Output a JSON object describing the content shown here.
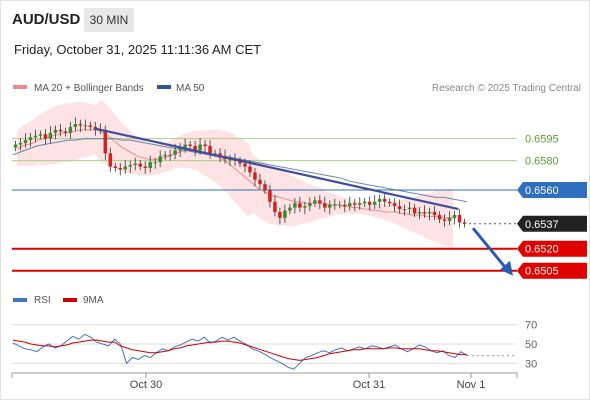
{
  "header": {
    "pair": "AUD/USD",
    "timeframe": "30 MIN",
    "datetime": "Friday, October 31, 2025 11:11:36 AM CET"
  },
  "legend": {
    "ma20": "MA 20 + Bollinger Bands",
    "ma50": "MA 50",
    "credit": "Research © 2025 Trading Central",
    "rsi": "RSI",
    "rsi_ma": "9MA"
  },
  "colors": {
    "ma20": "#f08a8a",
    "band_fill": "#fde0e0",
    "ma50": "#2f5597",
    "trendline": "#3f4d9a",
    "resistance_green": "#a9d08e",
    "pivot_blue": "#2e6fbf",
    "support_red": "#e00000",
    "candle_green": "#3a8a2e",
    "candle_red": "#d42020",
    "rsi_line": "#4472c4",
    "rsi_ma_line": "#cc0000"
  },
  "chart_data": {
    "type": "candlestick",
    "y_unit": "AUD/USD",
    "ylim": [
      0.6498,
      0.66125
    ],
    "x_ticks": [
      "Oct 30",
      "Oct 31",
      "Nov 1"
    ],
    "levels": [
      {
        "value": 0.6595,
        "label": "0.6595",
        "kind": "resistance"
      },
      {
        "value": 0.658,
        "label": "0.6580",
        "kind": "resistance"
      },
      {
        "value": 0.656,
        "label": "0.6560",
        "kind": "pivot"
      },
      {
        "value": 0.6537,
        "label": "0.6537",
        "kind": "last_price"
      },
      {
        "value": 0.652,
        "label": "0.6520",
        "kind": "support"
      },
      {
        "value": 0.6505,
        "label": "0.6505",
        "kind": "support"
      }
    ],
    "series_close": [
      0.6591,
      0.6592,
      0.6594,
      0.6596,
      0.6597,
      0.6598,
      0.6595,
      0.6599,
      0.6601,
      0.66,
      0.6599,
      0.6603,
      0.6605,
      0.6604,
      0.6604,
      0.6603,
      0.6601,
      0.6601,
      0.6585,
      0.6576,
      0.6575,
      0.6574,
      0.6576,
      0.6577,
      0.6578,
      0.6576,
      0.6575,
      0.6579,
      0.6579,
      0.6583,
      0.6584,
      0.6584,
      0.6587,
      0.6589,
      0.6591,
      0.659,
      0.6587,
      0.6591,
      0.659,
      0.6585,
      0.6585,
      0.6583,
      0.6581,
      0.6581,
      0.658,
      0.6578,
      0.6576,
      0.6572,
      0.6567,
      0.6564,
      0.656,
      0.6552,
      0.6545,
      0.6541,
      0.6546,
      0.6548,
      0.6551,
      0.6548,
      0.6549,
      0.6551,
      0.6553,
      0.6551,
      0.6548,
      0.655,
      0.655,
      0.655,
      0.6549,
      0.6551,
      0.655,
      0.6551,
      0.6552,
      0.655,
      0.6552,
      0.6554,
      0.6552,
      0.6551,
      0.6549,
      0.6547,
      0.6547,
      0.6548,
      0.6544,
      0.6545,
      0.6544,
      0.6545,
      0.6543,
      0.654,
      0.6539,
      0.6541,
      0.6543,
      0.6538,
      0.6537
    ],
    "ma20": [
      0.6588,
      0.659,
      0.6591,
      0.6592,
      0.6594,
      0.6595,
      0.6596,
      0.6597,
      0.6598,
      0.6599,
      0.6599,
      0.66,
      0.6601,
      0.6601,
      0.6601,
      0.6601,
      0.66,
      0.6598,
      0.6595,
      0.6592,
      0.6589,
      0.6587,
      0.6585,
      0.6583,
      0.6582,
      0.6581,
      0.6581,
      0.6581,
      0.6582,
      0.6583,
      0.6585,
      0.6586,
      0.6587,
      0.6587,
      0.6587,
      0.6586,
      0.6585,
      0.6584,
      0.6583,
      0.6581,
      0.6579,
      0.6576,
      0.6573,
      0.657,
      0.6567,
      0.6564,
      0.6561,
      0.6559,
      0.6557,
      0.6556,
      0.6555,
      0.6554,
      0.6553,
      0.6552,
      0.6552,
      0.6551,
      0.6551,
      0.6551,
      0.6551,
      0.655,
      0.655,
      0.655,
      0.6549,
      0.6549,
      0.6548,
      0.6548,
      0.6547,
      0.6547,
      0.6546,
      0.6546,
      0.6545,
      0.6545,
      0.6545,
      0.6544,
      0.6544,
      0.6543,
      0.6543,
      0.6543,
      0.6542,
      0.6542,
      0.6542,
      0.6541,
      0.6541,
      0.6541
    ],
    "ma50": [
      0.6584,
      0.6586,
      0.6588,
      0.659,
      0.6591,
      0.6592,
      0.6593,
      0.6594,
      0.6594,
      0.6595,
      0.6595,
      0.6595,
      0.6595,
      0.6595,
      0.6594,
      0.6594,
      0.6593,
      0.6592,
      0.6591,
      0.659,
      0.6589,
      0.6588,
      0.6587,
      0.6586,
      0.6585,
      0.6584,
      0.6583,
      0.6583,
      0.6582,
      0.6581,
      0.658,
      0.6579,
      0.6578,
      0.6577,
      0.6576,
      0.6575,
      0.6574,
      0.6573,
      0.6572,
      0.6571,
      0.657,
      0.6569,
      0.6568,
      0.6566,
      0.6565,
      0.6564,
      0.6563,
      0.6562,
      0.6561,
      0.656,
      0.6559,
      0.6558,
      0.6557,
      0.6556,
      0.6555,
      0.6555,
      0.6554,
      0.6553,
      0.6552
    ],
    "trendline": {
      "from": {
        "bar": 19,
        "value": 0.6602
      },
      "to": {
        "bar": 104,
        "value": 0.6547
      }
    },
    "projection_arrow": {
      "from": {
        "bar": 110,
        "value": 0.6534
      },
      "to": {
        "bar": 120,
        "value": 0.6505
      }
    },
    "rsi": {
      "ylim": [
        20,
        80
      ],
      "ticks": [
        70,
        50,
        30
      ],
      "rsi": [
        51,
        48,
        45,
        44,
        42,
        47,
        50,
        46,
        48,
        53,
        58,
        55,
        60,
        57,
        52,
        50,
        48,
        55,
        50,
        30,
        36,
        34,
        38,
        36,
        41,
        45,
        43,
        47,
        49,
        52,
        55,
        53,
        57,
        51,
        53,
        57,
        54,
        57,
        53,
        50,
        45,
        43,
        40,
        36,
        33,
        30,
        26,
        24,
        30,
        36,
        38,
        41,
        43,
        41,
        44,
        46,
        43,
        45,
        47,
        45,
        48,
        47,
        45,
        47,
        49,
        45,
        42,
        45,
        49,
        47,
        43,
        41,
        43,
        38,
        36,
        42,
        38
      ],
      "ma": [
        54,
        53,
        52,
        50,
        49,
        48,
        48,
        47,
        48,
        49,
        51,
        52,
        53,
        54,
        54,
        53,
        52,
        52,
        48,
        46,
        44,
        43,
        42,
        41,
        41,
        42,
        43,
        45,
        46,
        48,
        49,
        50,
        51,
        52,
        52,
        53,
        53,
        52,
        51,
        49,
        47,
        45,
        43,
        41,
        39,
        37,
        35,
        34,
        33,
        34,
        35,
        36,
        38,
        40,
        41,
        42,
        43,
        44,
        44,
        45,
        45,
        45,
        45,
        46,
        46,
        45,
        45,
        45,
        45,
        44,
        43,
        43,
        42,
        41,
        40,
        39,
        39
      ]
    }
  }
}
